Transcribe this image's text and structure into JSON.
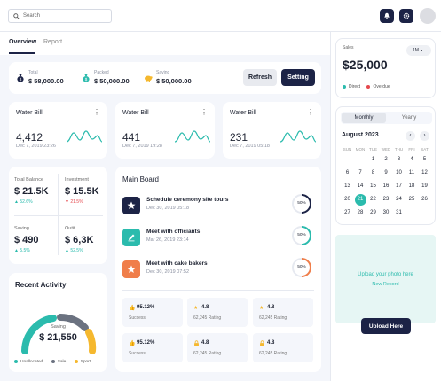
{
  "topbar": {
    "search_placeholder": "Search"
  },
  "tabs": [
    {
      "label": "Overview"
    },
    {
      "label": "Report"
    }
  ],
  "totals": {
    "total": {
      "label": "Total",
      "value": "$ 58,000.00"
    },
    "packed": {
      "label": "Packed",
      "value": "$ 50,000.00"
    },
    "saving": {
      "label": "Saving",
      "value": "$ 50,000.00"
    },
    "refresh_label": "Refresh",
    "setting_label": "Setting"
  },
  "bills": [
    {
      "title": "Water Bill",
      "value": "4,412",
      "date": "Dec 7, 2019 23:26"
    },
    {
      "title": "Water Bill",
      "value": "441",
      "date": "Dec 7, 2019 19:28"
    },
    {
      "title": "Water Bill",
      "value": "231",
      "date": "Dec 7, 2019 05:18"
    }
  ],
  "stats": [
    {
      "label": "Total Balance",
      "value": "$ 21.5K",
      "change": "▲ 52.6%",
      "color": "#2bbbad"
    },
    {
      "label": "Investment",
      "value": "$ 15.5K",
      "change": "▼ 21.5%",
      "color": "#e5484d"
    },
    {
      "label": "Saving",
      "value": "$ 490",
      "change": "▲ 5.5%",
      "color": "#2bbbad"
    },
    {
      "label": "Outit",
      "value": "$ 6,3K",
      "change": "▲ 52.5%",
      "color": "#2bbbad"
    }
  ],
  "activity": {
    "title": "Recent Activity",
    "center_label": "Saving",
    "center_value": "$ 21,550",
    "legend": [
      {
        "label": "Unallocated",
        "color": "#2bbbad"
      },
      {
        "label": "Sale",
        "color": "#6b7280"
      },
      {
        "label": "Sport",
        "color": "#f5b82e"
      }
    ]
  },
  "board": {
    "title": "Main Board",
    "tasks": [
      {
        "title": "Schedule ceremony site tours",
        "date": "Dec 30, 2019 05:18",
        "pct": "50%",
        "icon": "star-icon",
        "color": "#1c2346"
      },
      {
        "title": "Meet with officiants",
        "date": "Mar 26, 2019 23:14",
        "pct": "50%",
        "icon": "pen-icon",
        "color": "#2bbbad"
      },
      {
        "title": "Meet with cake bakers",
        "date": "Dec 30, 2019 07:52",
        "pct": "50%",
        "icon": "star-icon",
        "color": "#f07e4a"
      }
    ],
    "minis": [
      {
        "value": "95.12%",
        "sub": "Success",
        "icon": "thumbs-up-icon"
      },
      {
        "value": "4.8",
        "sub": "62,245 Rating",
        "icon": "star-icon"
      },
      {
        "value": "4.8",
        "sub": "62,245 Rating",
        "icon": "star-icon"
      },
      {
        "value": "95.12%",
        "sub": "Success",
        "icon": "thumbs-up-icon"
      },
      {
        "value": "4.8",
        "sub": "62,245 Rating",
        "icon": "lock-icon"
      },
      {
        "value": "4.8",
        "sub": "62,245 Rating",
        "icon": "lock-icon"
      }
    ]
  },
  "sales": {
    "label": "Sales",
    "period": "1M",
    "value": "$25,000",
    "legend": [
      {
        "label": "Direct",
        "color": "#2bbbad"
      },
      {
        "label": "Overdue",
        "color": "#e5484d"
      }
    ]
  },
  "calendar": {
    "tab_monthly": "Monthly",
    "tab_yearly": "Yearly",
    "month_label": "August 2023",
    "weekdays": [
      "SUN",
      "MON",
      "TUE",
      "WED",
      "THU",
      "FRI",
      "SAT"
    ],
    "weeks": [
      [
        "",
        "",
        "1",
        "2",
        "3",
        "4",
        "5"
      ],
      [
        "6",
        "7",
        "8",
        "9",
        "10",
        "11",
        "12"
      ],
      [
        "13",
        "14",
        "15",
        "16",
        "17",
        "18",
        "19"
      ],
      [
        "20",
        "21",
        "22",
        "23",
        "24",
        "25",
        "26"
      ],
      [
        "27",
        "28",
        "29",
        "30",
        "31",
        "",
        ""
      ]
    ],
    "selected": "21"
  },
  "upload": {
    "prompt_line1": "Upload your photo here",
    "prompt_line2": "New Record",
    "button_label": "Upload Here"
  },
  "colors": {
    "accent": "#2bbbad",
    "navy": "#1c2346",
    "danger": "#e5484d",
    "orange": "#f07e4a",
    "yellow": "#f5b82e"
  }
}
